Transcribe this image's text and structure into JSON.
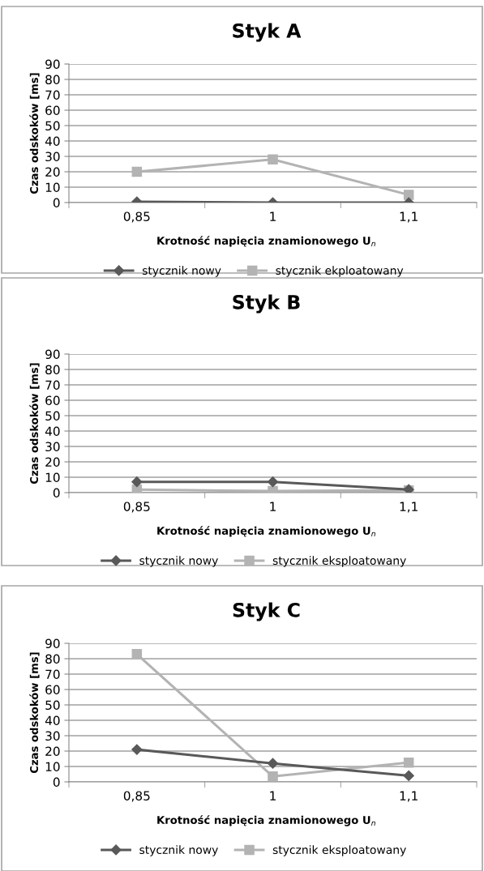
{
  "chart_data": [
    {
      "type": "line",
      "title": "Styk A",
      "xlabel": "Krotność napięcia znamionowego U$_{n}$",
      "ylabel": "Czas odskoków [ms]",
      "categories": [
        "0,85",
        "1",
        "1,1"
      ],
      "ylim": [
        0,
        90
      ],
      "yticks": [
        0,
        10,
        20,
        30,
        40,
        50,
        60,
        70,
        80,
        90
      ],
      "grid": "y",
      "legend": "bottom",
      "series": [
        {
          "name": "stycznik nowy",
          "color": "#595959",
          "marker": "diamond",
          "values": [
            0.5,
            0,
            0
          ]
        },
        {
          "name": "stycznik ekploatowany",
          "color": "#b3b3b3",
          "marker": "square",
          "values": [
            20,
            28,
            5
          ]
        }
      ]
    },
    {
      "type": "line",
      "title": "Styk B",
      "xlabel": "Krotność napięcia znamionowego U$_{n}$",
      "ylabel": "Czas odskoków [ms]",
      "categories": [
        "0,85",
        "1",
        "1,1"
      ],
      "ylim": [
        0,
        90
      ],
      "yticks": [
        0,
        10,
        20,
        30,
        40,
        50,
        60,
        70,
        80,
        90
      ],
      "grid": "y",
      "legend": "bottom",
      "series": [
        {
          "name": "stycznik nowy",
          "color": "#595959",
          "marker": "diamond",
          "values": [
            7,
            7,
            2
          ]
        },
        {
          "name": "stycznik eksploatowany",
          "color": "#b3b3b3",
          "marker": "square",
          "values": [
            2,
            1,
            1.5
          ]
        }
      ]
    },
    {
      "type": "line",
      "title": "Styk C",
      "xlabel": "Krotność napięcia znamionowego U$_{n}$",
      "ylabel": "Czas odskoków [ms]",
      "categories": [
        "0,85",
        "1",
        "1,1"
      ],
      "ylim": [
        0,
        90
      ],
      "yticks": [
        0,
        10,
        20,
        30,
        40,
        50,
        60,
        70,
        80,
        90
      ],
      "grid": "y",
      "legend": "bottom",
      "series": [
        {
          "name": "stycznik nowy",
          "color": "#595959",
          "marker": "diamond",
          "values": [
            21,
            12,
            4
          ]
        },
        {
          "name": "stycznik eksploatowany",
          "color": "#b3b3b3",
          "marker": "square",
          "values": [
            83,
            3.5,
            12.5
          ]
        }
      ]
    }
  ]
}
